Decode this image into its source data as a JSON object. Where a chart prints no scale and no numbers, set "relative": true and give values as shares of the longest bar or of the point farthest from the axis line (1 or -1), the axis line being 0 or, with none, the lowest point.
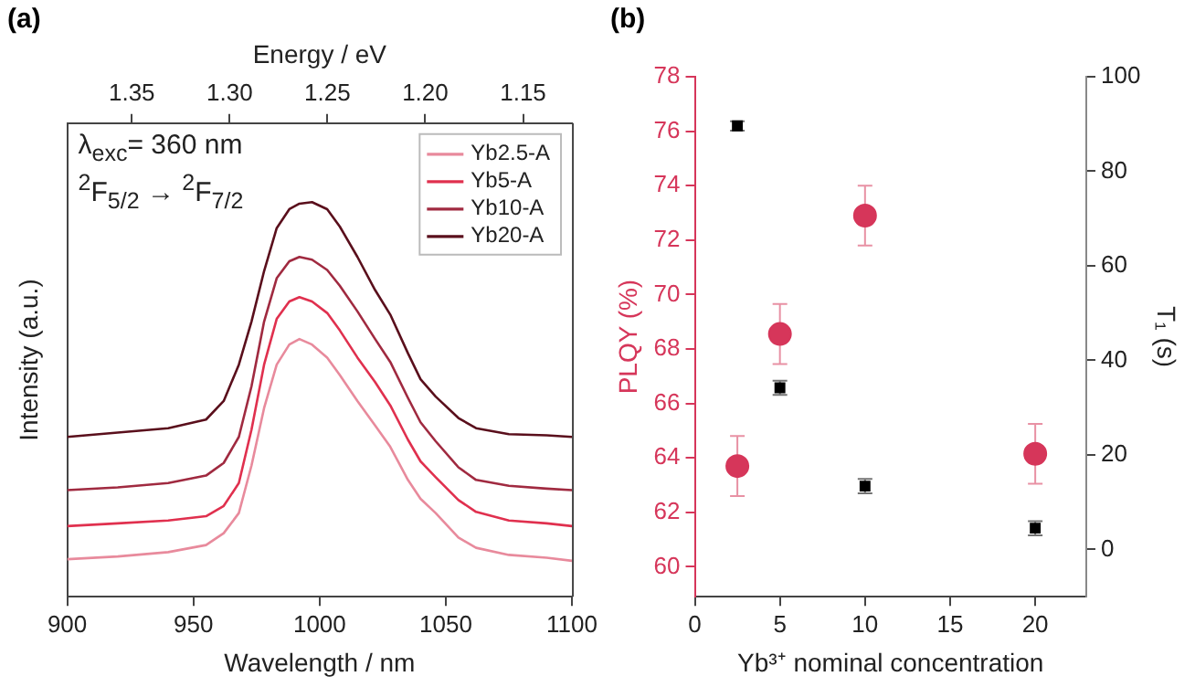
{
  "chart_data": [
    {
      "type": "line",
      "title": "(a)",
      "xlabel": "Wavelength / nm",
      "x2label": "Energy / eV",
      "ylabel": "Intensity (a.u.)",
      "relative": true,
      "xlim": [
        900,
        1100
      ],
      "xticks": [
        900,
        950,
        1000,
        1050,
        1100
      ],
      "x2lim": [
        1.383,
        1.125
      ],
      "x2ticks": [
        1.35,
        {
          "value": 1.3,
          "label": "1.30"
        },
        1.25,
        {
          "value": 1.2,
          "label": "1.20"
        },
        1.15
      ],
      "marker": "none",
      "legend": "top right",
      "annotations": [
        "λ$_{exc}$= 360 nm",
        "$^{2}$F$_{5/2}$ → $^{2}$F$_{7/2}$"
      ],
      "x": [
        900,
        920,
        940,
        955,
        962,
        968,
        973,
        978,
        983,
        988,
        992,
        997,
        1003,
        1008,
        1015,
        1022,
        1028,
        1035,
        1040,
        1046,
        1055,
        1062,
        1075,
        1090,
        1100
      ],
      "series": [
        {
          "name": "Yb2.5-A",
          "color": "#e88a9c",
          "values": [
            0.095,
            0.102,
            0.113,
            0.131,
            0.161,
            0.212,
            0.332,
            0.478,
            0.588,
            0.639,
            0.653,
            0.639,
            0.606,
            0.562,
            0.496,
            0.434,
            0.38,
            0.296,
            0.248,
            0.212,
            0.15,
            0.124,
            0.106,
            0.099,
            0.091
          ]
        },
        {
          "name": "Yb5-A",
          "color": "#e0304e",
          "values": [
            0.179,
            0.186,
            0.193,
            0.204,
            0.23,
            0.288,
            0.423,
            0.588,
            0.704,
            0.748,
            0.759,
            0.748,
            0.719,
            0.675,
            0.606,
            0.544,
            0.485,
            0.398,
            0.343,
            0.303,
            0.245,
            0.215,
            0.193,
            0.186,
            0.179
          ]
        },
        {
          "name": "Yb10-A",
          "color": "#a02a40",
          "values": [
            0.27,
            0.277,
            0.288,
            0.307,
            0.339,
            0.405,
            0.533,
            0.697,
            0.807,
            0.85,
            0.861,
            0.854,
            0.828,
            0.788,
            0.723,
            0.653,
            0.595,
            0.504,
            0.442,
            0.394,
            0.328,
            0.296,
            0.281,
            0.274,
            0.27
          ]
        },
        {
          "name": "Yb20-A",
          "color": "#5a0f1c",
          "values": [
            0.405,
            0.416,
            0.427,
            0.449,
            0.496,
            0.588,
            0.697,
            0.825,
            0.934,
            0.982,
            0.996,
            1.0,
            0.982,
            0.938,
            0.861,
            0.777,
            0.715,
            0.617,
            0.551,
            0.507,
            0.453,
            0.427,
            0.412,
            0.409,
            0.405
          ]
        }
      ]
    },
    {
      "type": "scatter",
      "title": "(b)",
      "xlabel": "Yb³⁺ nominal concentration",
      "ylabel": "PLQY (%)",
      "y2label": "T₁ (s)",
      "xlim": [
        0,
        23
      ],
      "xticks": [
        0,
        5,
        10,
        15,
        20
      ],
      "ylim": [
        58.9,
        78
      ],
      "yticks": [
        60,
        62,
        64,
        66,
        68,
        70,
        72,
        74,
        76,
        78
      ],
      "y2lim": [
        -10,
        100
      ],
      "y2ticks": [
        0,
        20,
        40,
        60,
        80,
        100
      ],
      "grid": false,
      "legend": false,
      "x": [
        2.5,
        5,
        10,
        20
      ],
      "series": [
        {
          "color": "#d6365a",
          "marker": "circle",
          "values": [
            63.7,
            68.55,
            72.9,
            64.15
          ],
          "errors": [
            1.1,
            1.1,
            1.1,
            1.1
          ]
        },
        {
          "color": "#000000",
          "marker": "square",
          "axis": "y2",
          "values": [
            89.6,
            34.2,
            13.4,
            4.5
          ],
          "errors": [
            1,
            1.5,
            1.5,
            1.5
          ]
        }
      ]
    }
  ]
}
